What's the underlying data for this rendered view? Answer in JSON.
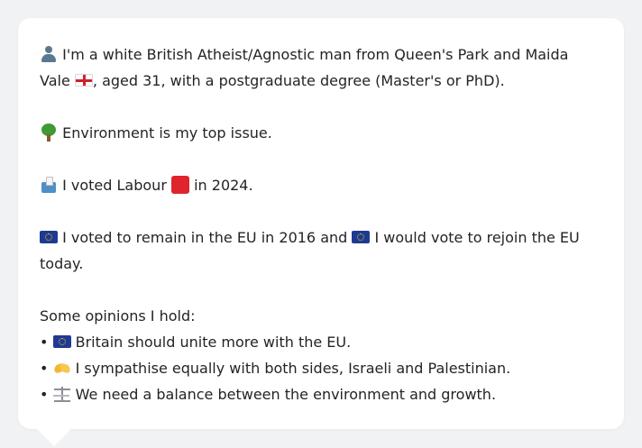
{
  "profile": {
    "intro_text": "I'm a white British Atheist/Agnostic man from Queen's Park and Maida Vale",
    "intro_suffix": ", aged 31, with a postgraduate degree (Master's or PhD).",
    "top_issue": "Environment is my top issue.",
    "vote_prefix": "I voted Labour",
    "vote_suffix": "in 2024.",
    "eu_remain": "I voted to remain in the EU in 2016 and",
    "eu_rejoin": "I would vote to rejoin the EU today.",
    "opinions_heading": "Some opinions I hold:",
    "opinions": [
      {
        "bullet": "•",
        "icon": "eu-flag-icon",
        "text": "Britain should unite more with the EU."
      },
      {
        "bullet": "•",
        "icon": "handshake-icon",
        "text": "I sympathise equally with both sides, Israeli and Palestinian."
      },
      {
        "bullet": "•",
        "icon": "balance-scale-icon",
        "text": "We need a balance between the environment and growth."
      }
    ]
  },
  "colors": {
    "background": "#f1f2f4",
    "card": "#ffffff",
    "text": "#222428",
    "labour_red": "#e0242e",
    "eu_blue": "#1f3a93"
  }
}
